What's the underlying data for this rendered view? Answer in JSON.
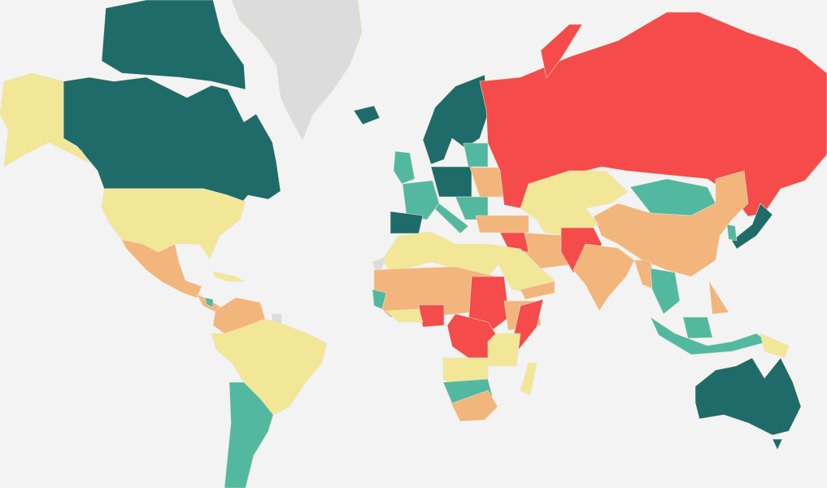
{
  "map": {
    "background": "#f3f3f3",
    "palette": {
      "dark-teal": "#1e6b69",
      "teal": "#52b9a0",
      "yellow": "#f2e796",
      "orange": "#f2b57c",
      "red": "#f54b4a",
      "no-data": "#dcdcdc"
    }
  }
}
